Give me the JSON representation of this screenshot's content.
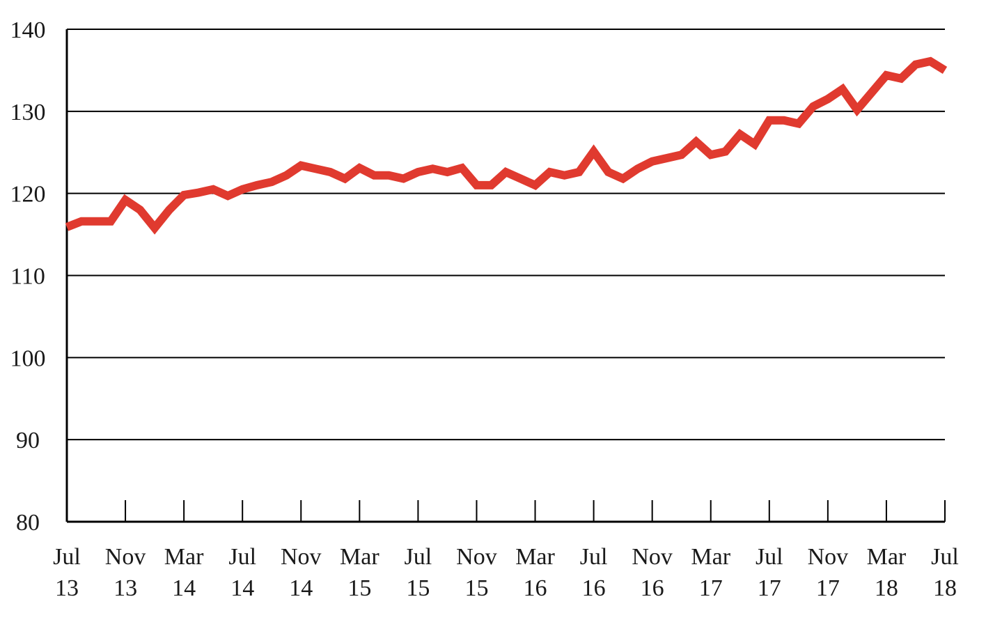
{
  "chart_data": {
    "type": "line",
    "title": "",
    "xlabel": "",
    "ylabel": "",
    "ylim": [
      80,
      140
    ],
    "yticks": [
      80,
      90,
      100,
      110,
      120,
      130,
      140
    ],
    "grid": true,
    "legend": "none",
    "x_tick_labels": [
      {
        "month": "Jul",
        "year": "13"
      },
      {
        "month": "Nov",
        "year": "13"
      },
      {
        "month": "Mar",
        "year": "14"
      },
      {
        "month": "Jul",
        "year": "14"
      },
      {
        "month": "Nov",
        "year": "14"
      },
      {
        "month": "Mar",
        "year": "15"
      },
      {
        "month": "Jul",
        "year": "15"
      },
      {
        "month": "Nov",
        "year": "15"
      },
      {
        "month": "Mar",
        "year": "16"
      },
      {
        "month": "Jul",
        "year": "16"
      },
      {
        "month": "Nov",
        "year": "16"
      },
      {
        "month": "Mar",
        "year": "17"
      },
      {
        "month": "Jul",
        "year": "17"
      },
      {
        "month": "Nov",
        "year": "17"
      },
      {
        "month": "Mar",
        "year": "18"
      },
      {
        "month": "Jul",
        "year": "18"
      }
    ],
    "series": [
      {
        "color": "#e03a2f",
        "x": [
          "Jul 13",
          "Aug 13",
          "Sep 13",
          "Oct 13",
          "Nov 13",
          "Dec 13",
          "Jan 14",
          "Feb 14",
          "Mar 14",
          "Apr 14",
          "May 14",
          "Jun 14",
          "Jul 14",
          "Aug 14",
          "Sep 14",
          "Oct 14",
          "Nov 14",
          "Dec 14",
          "Jan 15",
          "Feb 15",
          "Mar 15",
          "Apr 15",
          "May 15",
          "Jun 15",
          "Jul 15",
          "Aug 15",
          "Sep 15",
          "Oct 15",
          "Nov 15",
          "Dec 15",
          "Jan 16",
          "Feb 16",
          "Mar 16",
          "Apr 16",
          "May 16",
          "Jun 16",
          "Jul 16",
          "Aug 16",
          "Sep 16",
          "Oct 16",
          "Nov 16",
          "Dec 16",
          "Jan 17",
          "Feb 17",
          "Mar 17",
          "Apr 17",
          "May 17",
          "Jun 17",
          "Jul 17",
          "Aug 17",
          "Sep 17",
          "Oct 17",
          "Nov 17",
          "Dec 17",
          "Jan 18",
          "Feb 18",
          "Mar 18",
          "Apr 18",
          "May 18",
          "Jun 18",
          "Jul 18"
        ],
        "values": [
          115.9,
          116.6,
          116.6,
          116.6,
          119.2,
          118.0,
          115.8,
          118.0,
          119.8,
          120.1,
          120.5,
          119.7,
          120.5,
          121.0,
          121.4,
          122.2,
          123.4,
          123.0,
          122.6,
          121.8,
          123.1,
          122.2,
          122.2,
          121.8,
          122.6,
          123.0,
          122.6,
          123.1,
          121.0,
          121.0,
          122.6,
          121.8,
          121.0,
          122.6,
          122.2,
          122.6,
          125.1,
          122.6,
          121.8,
          123.0,
          123.9,
          124.3,
          124.7,
          126.3,
          124.7,
          125.1,
          127.2,
          126.0,
          128.9,
          128.9,
          128.5,
          130.6,
          131.5,
          132.7,
          130.2,
          132.3,
          134.4,
          134.0,
          135.7,
          136.1,
          135.0
        ]
      }
    ]
  }
}
